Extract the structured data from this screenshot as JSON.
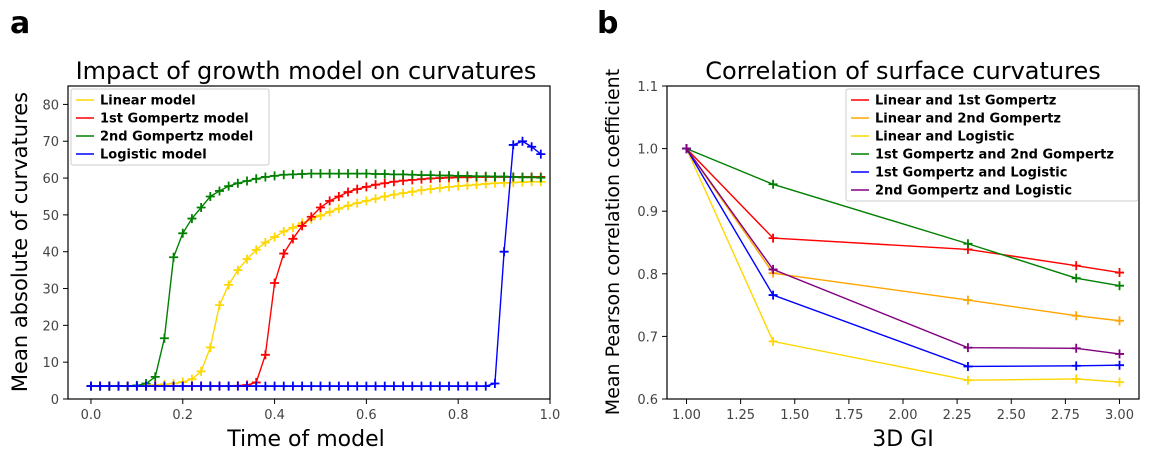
{
  "panels": [
    {
      "letter": "a",
      "chart_data": {
        "type": "line",
        "title": "Impact of growth model on curvatures",
        "xlabel": "Time of model",
        "ylabel": "Mean absolute of curvatures",
        "xlim": [
          -0.05,
          1.0
        ],
        "ylim": [
          0,
          85
        ],
        "xticks": [
          0.0,
          0.2,
          0.4,
          0.6,
          0.8,
          1.0
        ],
        "xtick_labels": [
          "0.0",
          "0.2",
          "0.4",
          "0.6",
          "0.8",
          "1.0"
        ],
        "yticks": [
          0,
          10,
          20,
          30,
          40,
          50,
          60,
          70,
          80
        ],
        "ytick_labels": [
          "0",
          "10",
          "20",
          "30",
          "40",
          "50",
          "60",
          "70",
          "80"
        ],
        "legend_position": "top-left",
        "grid": false,
        "x": [
          0.0,
          0.02,
          0.04,
          0.06,
          0.08,
          0.1,
          0.12,
          0.14,
          0.16,
          0.18,
          0.2,
          0.22,
          0.24,
          0.26,
          0.28,
          0.3,
          0.32,
          0.34,
          0.36,
          0.38,
          0.4,
          0.42,
          0.44,
          0.46,
          0.48,
          0.5,
          0.52,
          0.54,
          0.56,
          0.58,
          0.6,
          0.62,
          0.64,
          0.66,
          0.68,
          0.7,
          0.72,
          0.74,
          0.76,
          0.78,
          0.8,
          0.82,
          0.84,
          0.86,
          0.88,
          0.9,
          0.92,
          0.94,
          0.96,
          0.98
        ],
        "series": [
          {
            "name": "Linear model",
            "color": "#FFD700",
            "values": [
              3.5,
              3.5,
              3.5,
              3.5,
              3.5,
              3.6,
              3.7,
              3.8,
              4.0,
              4.2,
              4.6,
              5.4,
              7.5,
              14.0,
              25.5,
              31.0,
              35.0,
              38.0,
              40.5,
              42.5,
              44.0,
              45.5,
              46.5,
              47.8,
              48.8,
              49.8,
              50.8,
              51.7,
              52.5,
              53.2,
              53.8,
              54.4,
              55.0,
              55.5,
              55.9,
              56.3,
              56.7,
              57.0,
              57.3,
              57.6,
              57.8,
              58.0,
              58.2,
              58.4,
              58.6,
              58.7,
              58.8,
              58.9,
              59.0,
              59.0
            ]
          },
          {
            "name": "1st Gompertz model",
            "color": "#FF0000",
            "values": [
              3.5,
              3.5,
              3.5,
              3.5,
              3.5,
              3.5,
              3.5,
              3.5,
              3.5,
              3.5,
              3.5,
              3.5,
              3.5,
              3.5,
              3.5,
              3.5,
              3.6,
              3.8,
              4.5,
              12.0,
              31.5,
              39.5,
              43.5,
              47.0,
              49.5,
              52.0,
              53.8,
              55.0,
              56.2,
              57.0,
              57.6,
              58.2,
              58.6,
              59.0,
              59.3,
              59.5,
              59.7,
              59.9,
              60.0,
              60.1,
              60.2,
              60.2,
              60.3,
              60.3,
              60.3,
              60.3,
              60.3,
              60.3,
              60.3,
              60.3
            ]
          },
          {
            "name": "2nd Gompertz model",
            "color": "#008000",
            "values": [
              3.5,
              3.5,
              3.5,
              3.5,
              3.5,
              3.7,
              4.2,
              6.0,
              16.5,
              38.5,
              45.0,
              49.0,
              52.0,
              55.0,
              56.5,
              57.8,
              58.6,
              59.2,
              59.8,
              60.3,
              60.6,
              60.9,
              61.0,
              61.1,
              61.2,
              61.2,
              61.2,
              61.2,
              61.2,
              61.2,
              61.2,
              61.1,
              61.1,
              61.0,
              61.0,
              60.9,
              60.8,
              60.8,
              60.7,
              60.7,
              60.6,
              60.6,
              60.5,
              60.5,
              60.4,
              60.4,
              60.3,
              60.2,
              60.2,
              60.1
            ]
          },
          {
            "name": "Logistic model",
            "color": "#0000FF",
            "values": [
              3.5,
              3.5,
              3.5,
              3.5,
              3.5,
              3.5,
              3.5,
              3.5,
              3.5,
              3.5,
              3.5,
              3.5,
              3.5,
              3.5,
              3.5,
              3.5,
              3.5,
              3.5,
              3.5,
              3.5,
              3.5,
              3.5,
              3.5,
              3.5,
              3.5,
              3.5,
              3.5,
              3.5,
              3.5,
              3.5,
              3.5,
              3.5,
              3.5,
              3.5,
              3.5,
              3.5,
              3.5,
              3.5,
              3.5,
              3.5,
              3.5,
              3.5,
              3.5,
              3.5,
              4.2,
              40.0,
              69.0,
              70.0,
              68.5,
              66.5
            ]
          }
        ]
      }
    },
    {
      "letter": "b",
      "chart_data": {
        "type": "line",
        "title": "Correlation of surface curvatures",
        "xlabel": "3D GI",
        "ylabel": "Mean Pearson correlation coefficient",
        "xlim": [
          0.91,
          3.09
        ],
        "ylim": [
          0.6,
          1.1
        ],
        "xticks": [
          1.0,
          1.25,
          1.5,
          1.75,
          2.0,
          2.25,
          2.5,
          2.75,
          3.0
        ],
        "xtick_labels": [
          "1.00",
          "1.25",
          "1.50",
          "1.75",
          "2.00",
          "2.25",
          "2.50",
          "2.75",
          "3.00"
        ],
        "yticks": [
          0.6,
          0.7,
          0.8,
          0.9,
          1.0,
          1.1
        ],
        "ytick_labels": [
          "0.6",
          "0.7",
          "0.8",
          "0.9",
          "1.0",
          "1.1"
        ],
        "legend_position": "top-right",
        "grid": false,
        "x": [
          1.0,
          1.4,
          2.3,
          2.8,
          3.0
        ],
        "series": [
          {
            "name": "Linear and 1st Gompertz",
            "color": "#FF0000",
            "values": [
              1.0,
              0.857,
              0.839,
              0.813,
              0.802
            ]
          },
          {
            "name": "Linear and 2nd Gompertz",
            "color": "#FFA500",
            "values": [
              1.0,
              0.801,
              0.758,
              0.733,
              0.725
            ]
          },
          {
            "name": "Linear and Logistic",
            "color": "#FFD700",
            "values": [
              1.0,
              0.692,
              0.63,
              0.632,
              0.627
            ]
          },
          {
            "name": "1st Gompertz and 2nd Gompertz",
            "color": "#008000",
            "values": [
              1.0,
              0.943,
              0.848,
              0.793,
              0.781
            ]
          },
          {
            "name": "1st Gompertz and Logistic",
            "color": "#0000FF",
            "values": [
              1.0,
              0.766,
              0.652,
              0.653,
              0.654
            ]
          },
          {
            "name": "2nd Gompertz and Logistic",
            "color": "#800080",
            "values": [
              1.0,
              0.807,
              0.682,
              0.681,
              0.672
            ]
          }
        ]
      }
    }
  ]
}
